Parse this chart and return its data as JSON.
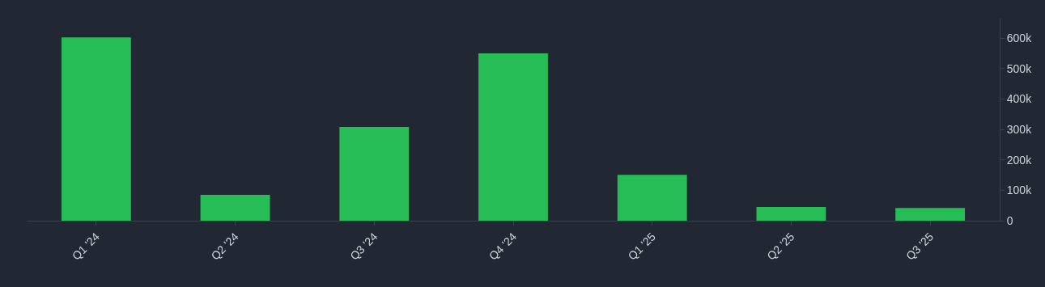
{
  "chart_data": {
    "type": "bar",
    "categories": [
      "Q1 '24",
      "Q2 '24",
      "Q3 '24",
      "Q4 '24",
      "Q1 '25",
      "Q2 '25",
      "Q3 '25"
    ],
    "values": [
      602000,
      85000,
      308000,
      550000,
      151000,
      45000,
      42000
    ],
    "color": "#26bc56",
    "ylim": [
      0,
      664000
    ],
    "yticks": [
      {
        "value": 0,
        "label": "0"
      },
      {
        "value": 100000,
        "label": "100k"
      },
      {
        "value": 200000,
        "label": "200k"
      },
      {
        "value": 300000,
        "label": "300k"
      },
      {
        "value": 400000,
        "label": "400k"
      },
      {
        "value": 500000,
        "label": "500k"
      },
      {
        "value": 600000,
        "label": "600k"
      }
    ],
    "grid": false
  }
}
